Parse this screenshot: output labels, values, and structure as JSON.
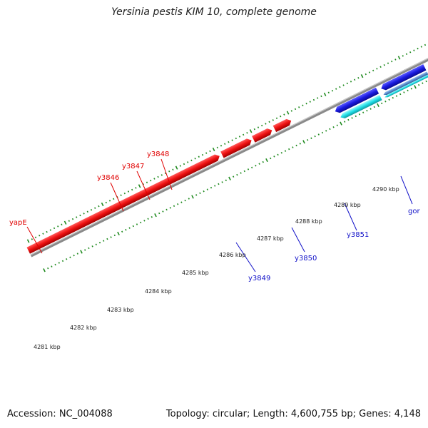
{
  "title": "Yersinia pestis KIM 10, complete genome",
  "footer": {
    "accession": "Accession: NC_004088",
    "summary": "Topology: circular; Length: 4,600,755 bp; Genes: 4,148"
  },
  "colors": {
    "backbone": "#8a8a8a",
    "ticks": "#1e8a1e",
    "forward_label": "#e00000",
    "reverse_label": "#1010c8",
    "red_gene": "#ee1111",
    "blue_gene": "#1a1ae0",
    "cyan_gene": "#22e0e8",
    "steel_gene": "#5a8ed0",
    "green_gene": "#44c844",
    "orange_gene": "#f08a1a"
  },
  "scale_labels": [
    "4281 kbp",
    "4282 kbp",
    "4283 kbp",
    "4284 kbp",
    "4285 kbp",
    "4286 kbp",
    "4287 kbp",
    "4288 kbp",
    "4289 kbp",
    "4290 kbp"
  ],
  "forward_labels": [
    "yapE",
    "y3846",
    "y3847",
    "y3848"
  ],
  "reverse_labels": [
    "y3849",
    "y3850",
    "y3851",
    "gor"
  ]
}
